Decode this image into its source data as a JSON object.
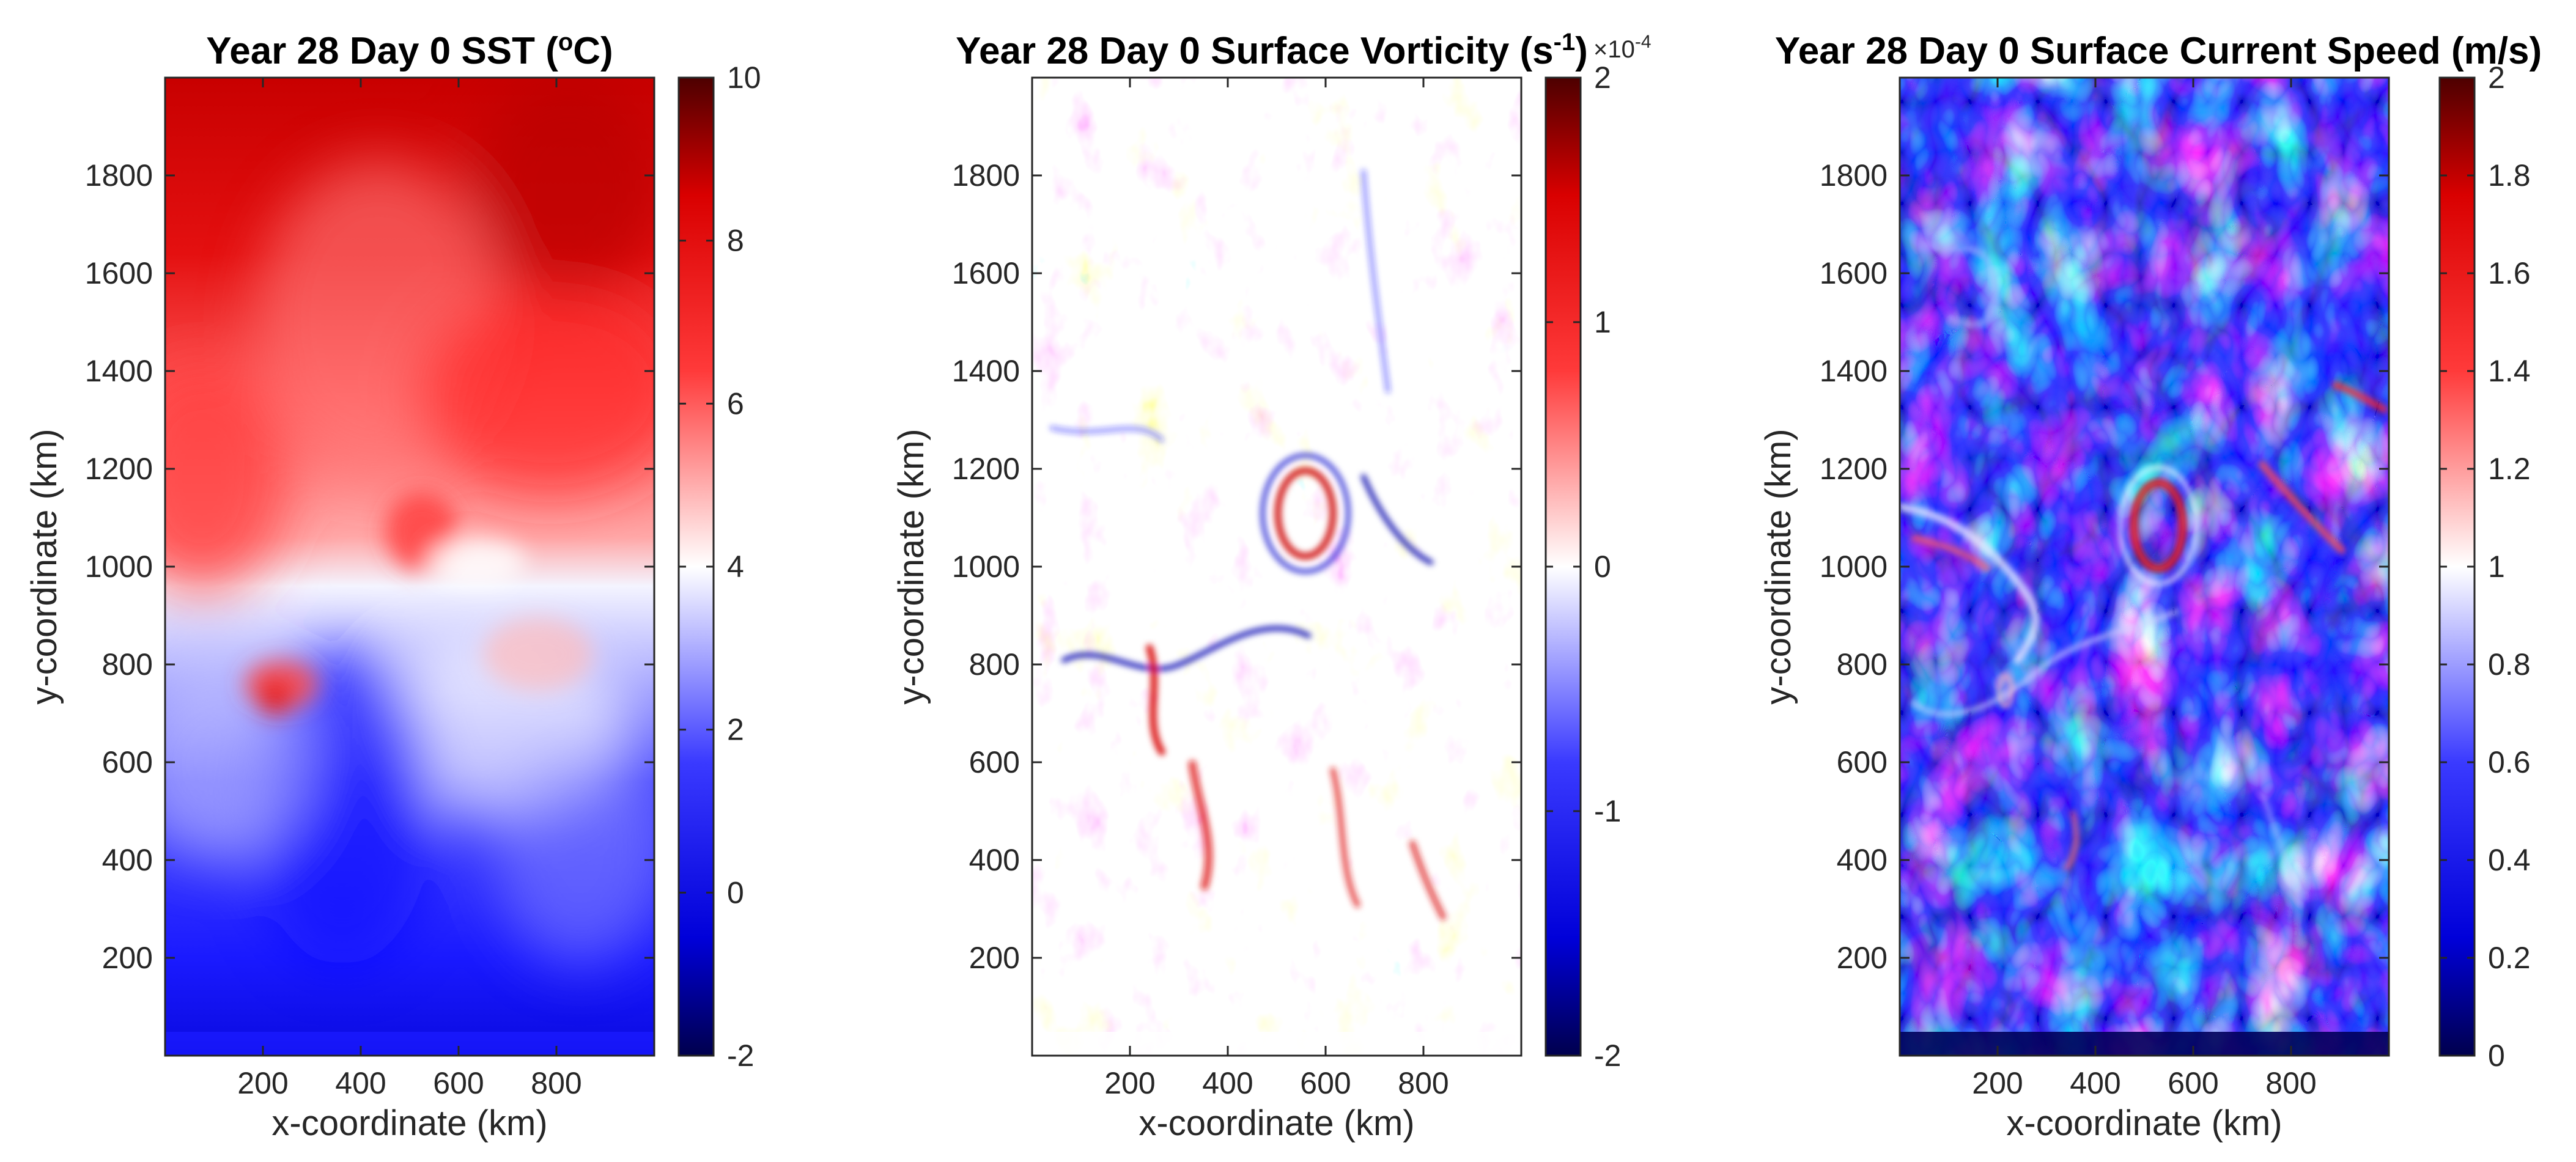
{
  "chart_data": [
    {
      "type": "heatmap",
      "title": "Year 28 Day 0 SST (",
      "title_unit_prefix": "o",
      "title_unit_suffix": "C)",
      "xlabel": "x-coordinate (km)",
      "ylabel": "y-coordinate (km)",
      "xlim": [
        0,
        1000
      ],
      "ylim": [
        0,
        2000
      ],
      "xticks": [
        200,
        400,
        600,
        800
      ],
      "yticks": [
        200,
        400,
        600,
        800,
        1000,
        1200,
        1400,
        1600,
        1800
      ],
      "colorbar": {
        "colormap": "blue-white-red",
        "clim": [
          -2,
          10
        ],
        "ticks": [
          -2,
          0,
          2,
          4,
          6,
          8,
          10
        ],
        "tick_labels": [
          "-2",
          "0",
          "2",
          "4",
          "6",
          "8",
          "10"
        ]
      },
      "field": "sst"
    },
    {
      "type": "heatmap",
      "title": "Year 28 Day 0 Surface Vorticity (s",
      "title_sup": "-1",
      "title_end": ")",
      "xlabel": "x-coordinate (km)",
      "ylabel": "y-coordinate (km)",
      "xlim": [
        0,
        1000
      ],
      "ylim": [
        0,
        2000
      ],
      "xticks": [
        200,
        400,
        600,
        800
      ],
      "yticks": [
        200,
        400,
        600,
        800,
        1000,
        1200,
        1400,
        1600,
        1800
      ],
      "colorbar": {
        "colormap": "blue-white-red",
        "clim": [
          -2,
          2
        ],
        "ticks": [
          -2,
          -1,
          0,
          1,
          2
        ],
        "tick_labels": [
          "-2",
          "-1",
          "0",
          "1",
          "2"
        ],
        "multiplier_base": "×10",
        "multiplier_exp": "-4"
      },
      "field": "vorticity"
    },
    {
      "type": "heatmap",
      "title": "Year 28 Day 0 Surface Current Speed (m/s)",
      "xlabel": "x-coordinate (km)",
      "ylabel": "y-coordinate (km)",
      "xlim": [
        0,
        1000
      ],
      "ylim": [
        0,
        2000
      ],
      "xticks": [
        200,
        400,
        600,
        800
      ],
      "yticks": [
        200,
        400,
        600,
        800,
        1000,
        1200,
        1400,
        1600,
        1800
      ],
      "colorbar": {
        "colormap": "blue-white-red",
        "clim": [
          0,
          2
        ],
        "ticks": [
          0,
          0.2,
          0.4,
          0.6,
          0.8,
          1,
          1.2,
          1.4,
          1.6,
          1.8,
          2
        ],
        "tick_labels": [
          "0",
          "0.2",
          "0.4",
          "0.6",
          "0.8",
          "1",
          "1.2",
          "1.4",
          "1.6",
          "1.8",
          "2"
        ]
      },
      "field": "speed"
    }
  ],
  "colors": {
    "cmap_stops": [
      "#00004d",
      "#0000d9",
      "#3a3aff",
      "#ffffff",
      "#ff3a3a",
      "#d90000",
      "#4d0000"
    ]
  }
}
